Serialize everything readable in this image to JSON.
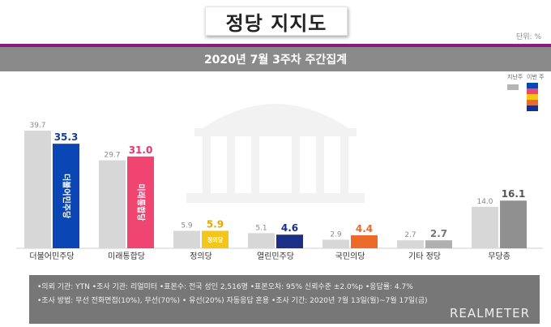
{
  "page": {
    "title": "정당 지지도",
    "unit": "단위: %",
    "subtitle": "2020년 7월 3주차 주간집계",
    "legend": {
      "prev_label": "지난주",
      "this_label": "이번 주"
    }
  },
  "chart_data": {
    "type": "bar",
    "title": "정당 지지도",
    "subtitle": "2020년 7월 3주차 주간집계",
    "categories": [
      "더불어민주당",
      "미래통합당",
      "정의당",
      "열린민주당",
      "국민의당",
      "기타 정당",
      "무당층"
    ],
    "series": [
      {
        "name": "지난주",
        "values": [
          39.7,
          29.7,
          5.9,
          5.1,
          2.9,
          2.7,
          14.0
        ]
      },
      {
        "name": "이번 주",
        "values": [
          35.3,
          31.0,
          5.9,
          4.6,
          4.4,
          2.7,
          16.1
        ]
      }
    ],
    "ylim": [
      0,
      40
    ],
    "colors": {
      "prev": "#d7d7d7",
      "current": [
        "#0a46b4",
        "#ef4570",
        "#f5c518",
        "#1b2f86",
        "#ee6a2b",
        "#b0b0b0",
        "#909090"
      ],
      "current_label": [
        "#1b3d8f",
        "#e8336e",
        "#e8a800",
        "#1b2f86",
        "#ee6a2b",
        "#777777",
        "#555555"
      ]
    },
    "bar_logos": [
      "더불어민주당",
      "미래통합당",
      "정의당",
      "",
      "",
      "",
      ""
    ]
  },
  "footer": {
    "line1": "•의뢰 기관: YTN •조사 기관: 리얼미터 •표본수: 전국 성인 2,516명 •표본오차: 95% 신뢰수준 ±2.0%p •응답률: 4.7%",
    "line2": "•조사 방법: 무선 전화면접(10%), 무선(70%) • 유선(20%) 자동응답 혼용 •조사 기간: 2020년 7월 13일(월)~7월 17일(금)",
    "brand": "REALMETER"
  }
}
